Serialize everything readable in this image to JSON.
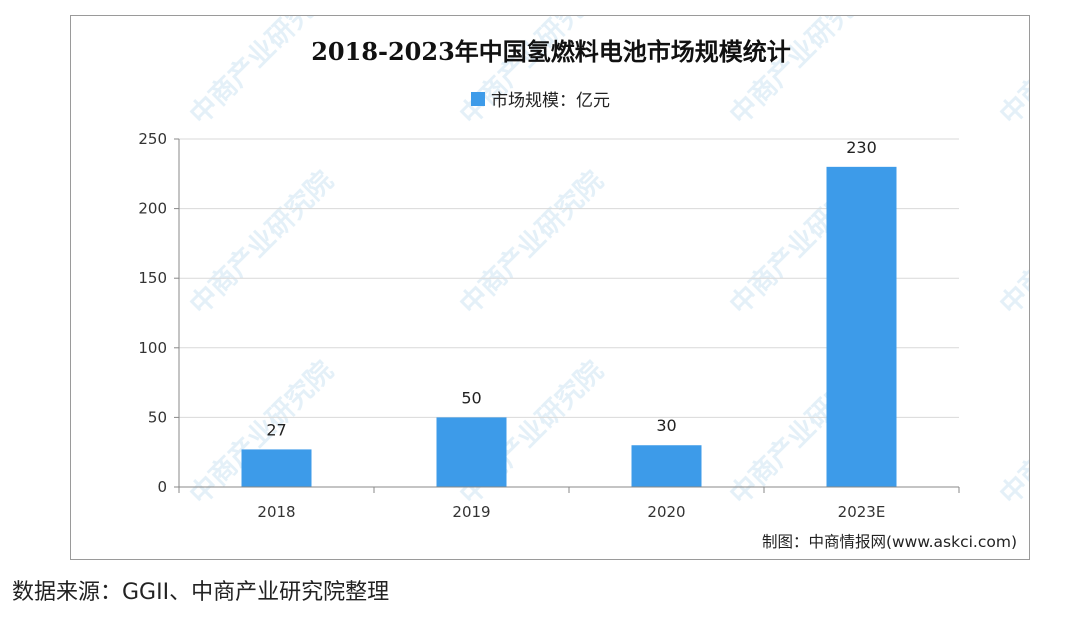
{
  "chart_data": {
    "type": "bar",
    "title": "2018-2023年中国氢燃料电池市场规模统计",
    "categories": [
      "2018",
      "2019",
      "2020",
      "2023E"
    ],
    "series": [
      {
        "name": "市场规模：亿元",
        "values": [
          27,
          50,
          30,
          230
        ],
        "color": "#3d9be9"
      }
    ],
    "data_labels": [
      "27",
      "50",
      "30",
      "230"
    ],
    "ylim": [
      0,
      250
    ],
    "yticks": [
      0,
      50,
      100,
      150,
      200,
      250
    ],
    "grid": true,
    "legend_position": "top-center"
  },
  "credit": "制图：中商情报网(www.askci.com)",
  "watermark": "中商产业研究院",
  "source_note": "数据来源：GGII、中商产业研究院整理"
}
